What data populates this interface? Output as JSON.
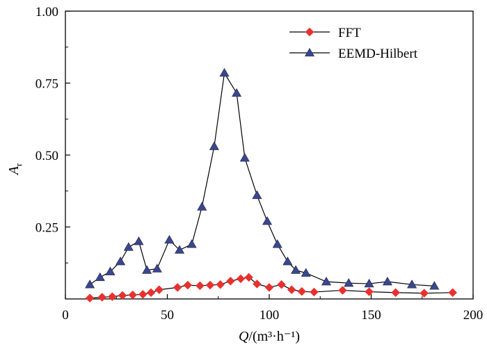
{
  "chart_data": {
    "type": "line",
    "xlabel": {
      "var": "Q",
      "unit": "/(m³·h⁻¹)"
    },
    "ylabel": {
      "var": "A",
      "sub": "r"
    },
    "xlim": [
      0,
      200
    ],
    "ylim": [
      0,
      1.0
    ],
    "x_ticks": [
      0,
      50,
      100,
      150,
      200
    ],
    "x_tick_labels": [
      "0",
      "50",
      "100",
      "150",
      "200"
    ],
    "y_ticks": [
      0.25,
      0.5,
      0.75,
      1.0
    ],
    "y_tick_labels": [
      "0.25",
      "0.50",
      "0.75",
      "1.00"
    ],
    "grid": false,
    "legend_position": "top-right",
    "series": [
      {
        "name": "FFT",
        "color": "#e8312f",
        "marker": "diamond",
        "points": [
          [
            12,
            0.003
          ],
          [
            18,
            0.006
          ],
          [
            23,
            0.008
          ],
          [
            28,
            0.012
          ],
          [
            33,
            0.014
          ],
          [
            38,
            0.016
          ],
          [
            42,
            0.022
          ],
          [
            46,
            0.032
          ],
          [
            55,
            0.04
          ],
          [
            60,
            0.048
          ],
          [
            66,
            0.046
          ],
          [
            71,
            0.048
          ],
          [
            76,
            0.05
          ],
          [
            81,
            0.062
          ],
          [
            86,
            0.07
          ],
          [
            90,
            0.075
          ],
          [
            94,
            0.052
          ],
          [
            100,
            0.04
          ],
          [
            106,
            0.05
          ],
          [
            111,
            0.032
          ],
          [
            116,
            0.026
          ],
          [
            122,
            0.024
          ],
          [
            136,
            0.03
          ],
          [
            149,
            0.025
          ],
          [
            162,
            0.022
          ],
          [
            176,
            0.02
          ],
          [
            190,
            0.022
          ]
        ]
      },
      {
        "name": "EEMD-Hilbert",
        "color": "#3a478c",
        "marker": "triangle",
        "points": [
          [
            12,
            0.05
          ],
          [
            17,
            0.075
          ],
          [
            22,
            0.095
          ],
          [
            27,
            0.13
          ],
          [
            31,
            0.18
          ],
          [
            36,
            0.2
          ],
          [
            40,
            0.1
          ],
          [
            45,
            0.105
          ],
          [
            51,
            0.205
          ],
          [
            56,
            0.17
          ],
          [
            62,
            0.19
          ],
          [
            67,
            0.32
          ],
          [
            73,
            0.53
          ],
          [
            78,
            0.785
          ],
          [
            84,
            0.715
          ],
          [
            88,
            0.49
          ],
          [
            94,
            0.36
          ],
          [
            99,
            0.27
          ],
          [
            104,
            0.19
          ],
          [
            109,
            0.13
          ],
          [
            113,
            0.1
          ],
          [
            118,
            0.09
          ],
          [
            128,
            0.06
          ],
          [
            139,
            0.055
          ],
          [
            149,
            0.053
          ],
          [
            158,
            0.06
          ],
          [
            170,
            0.05
          ],
          [
            181,
            0.045
          ]
        ]
      }
    ]
  }
}
